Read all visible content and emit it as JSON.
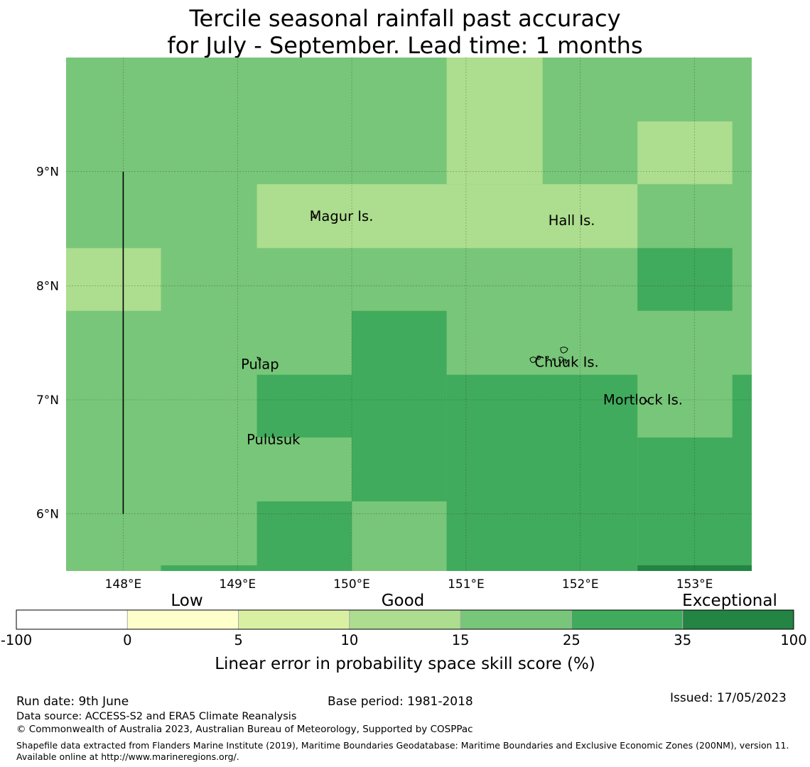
{
  "title_line1": "Tercile seasonal rainfall past accuracy",
  "title_line2": "for July - September. Lead time: 1 months",
  "map": {
    "lon_range": [
      147.5,
      153.5
    ],
    "lat_range": [
      5.5,
      10.0
    ],
    "lon_ticks": [
      {
        "value": 148,
        "label": "148°E"
      },
      {
        "value": 149,
        "label": "149°E"
      },
      {
        "value": 150,
        "label": "150°E"
      },
      {
        "value": 151,
        "label": "151°E"
      },
      {
        "value": 152,
        "label": "152°E"
      },
      {
        "value": 153,
        "label": "153°E"
      }
    ],
    "lat_ticks": [
      {
        "value": 9,
        "label": "9°N"
      },
      {
        "value": 8,
        "label": "8°N"
      },
      {
        "value": 7,
        "label": "7°N"
      },
      {
        "value": 6,
        "label": "6°N"
      }
    ],
    "background_color": "#78c679",
    "cells": [
      {
        "lon": [
          150.83,
          151.67
        ],
        "lat": [
          8.89,
          10.0
        ],
        "color": "#addd8e"
      },
      {
        "lon": [
          149.17,
          152.5
        ],
        "lat": [
          8.33,
          8.89
        ],
        "color": "#addd8e"
      },
      {
        "lon": [
          152.5,
          153.33
        ],
        "lat": [
          8.89,
          9.44
        ],
        "color": "#addd8e"
      },
      {
        "lon": [
          147.5,
          148.33
        ],
        "lat": [
          7.78,
          8.33
        ],
        "color": "#addd8e"
      },
      {
        "lon": [
          152.5,
          153.33
        ],
        "lat": [
          7.78,
          8.33
        ],
        "color": "#41ab5d"
      },
      {
        "lon": [
          150.0,
          150.83
        ],
        "lat": [
          6.11,
          7.78
        ],
        "color": "#41ab5d"
      },
      {
        "lon": [
          149.17,
          150.0
        ],
        "lat": [
          6.67,
          7.22
        ],
        "color": "#41ab5d"
      },
      {
        "lon": [
          150.83,
          152.5
        ],
        "lat": [
          5.5,
          7.22
        ],
        "color": "#41ab5d"
      },
      {
        "lon": [
          152.5,
          153.5
        ],
        "lat": [
          5.5,
          6.67
        ],
        "color": "#41ab5d"
      },
      {
        "lon": [
          153.33,
          153.5
        ],
        "lat": [
          6.67,
          7.22
        ],
        "color": "#41ab5d"
      },
      {
        "lon": [
          149.17,
          150.0
        ],
        "lat": [
          5.5,
          6.11
        ],
        "color": "#41ab5d"
      },
      {
        "lon": [
          148.33,
          149.17
        ],
        "lat": [
          5.5,
          5.55
        ],
        "color": "#41ab5d"
      },
      {
        "lon": [
          152.5,
          153.5
        ],
        "lat": [
          5.5,
          5.55
        ],
        "color": "#238443"
      }
    ],
    "boundary_line": {
      "lon": 148.0,
      "lat": [
        6.0,
        9.0
      ]
    },
    "place_labels": [
      {
        "name": "Magur Is.",
        "lon": 149.63,
        "lat": 8.57
      },
      {
        "name": "Hall Is.",
        "lon": 151.72,
        "lat": 8.53
      },
      {
        "name": "Pulap",
        "lon": 149.03,
        "lat": 7.27
      },
      {
        "name": "Chuuk Is.",
        "lon": 151.6,
        "lat": 7.29
      },
      {
        "name": "Mortlock Is.",
        "lon": 152.2,
        "lat": 6.96
      },
      {
        "name": "Pulusuk",
        "lon": 149.08,
        "lat": 6.61
      }
    ]
  },
  "legend": {
    "categories": [
      "Low",
      "Good",
      "Exceptional"
    ],
    "bins": [
      {
        "from": "-100",
        "color": "#ffffff"
      },
      {
        "from": "0",
        "color": "#ffffcc"
      },
      {
        "from": "5",
        "color": "#d9f0a3"
      },
      {
        "from": "10",
        "color": "#addd8e"
      },
      {
        "from": "15",
        "color": "#78c679"
      },
      {
        "from": "25",
        "color": "#41ab5d"
      },
      {
        "from": "35",
        "color": "#238443"
      }
    ],
    "last_tick": "100",
    "label": "Linear error in probability space skill score (%)"
  },
  "footer": {
    "run_date": "Run date: 9th June",
    "base_period": "Base period: 1981-2018",
    "issued": "Issued: 17/05/2023",
    "data_source": "Data source: ACCESS-S2 and ERA5 Climate Reanalysis",
    "copyright": "© Commonwealth of Australia 2023, Australian Bureau of Meteorology, Supported by COSPPac",
    "shapefile": "Shapefile data extracted from Flanders Marine Institute (2019), Maritime Boundaries Geodatabase: Maritime Boundaries and Exclusive Economic Zones (200NM), version 11. Available online at http://www.marineregions.org/."
  }
}
